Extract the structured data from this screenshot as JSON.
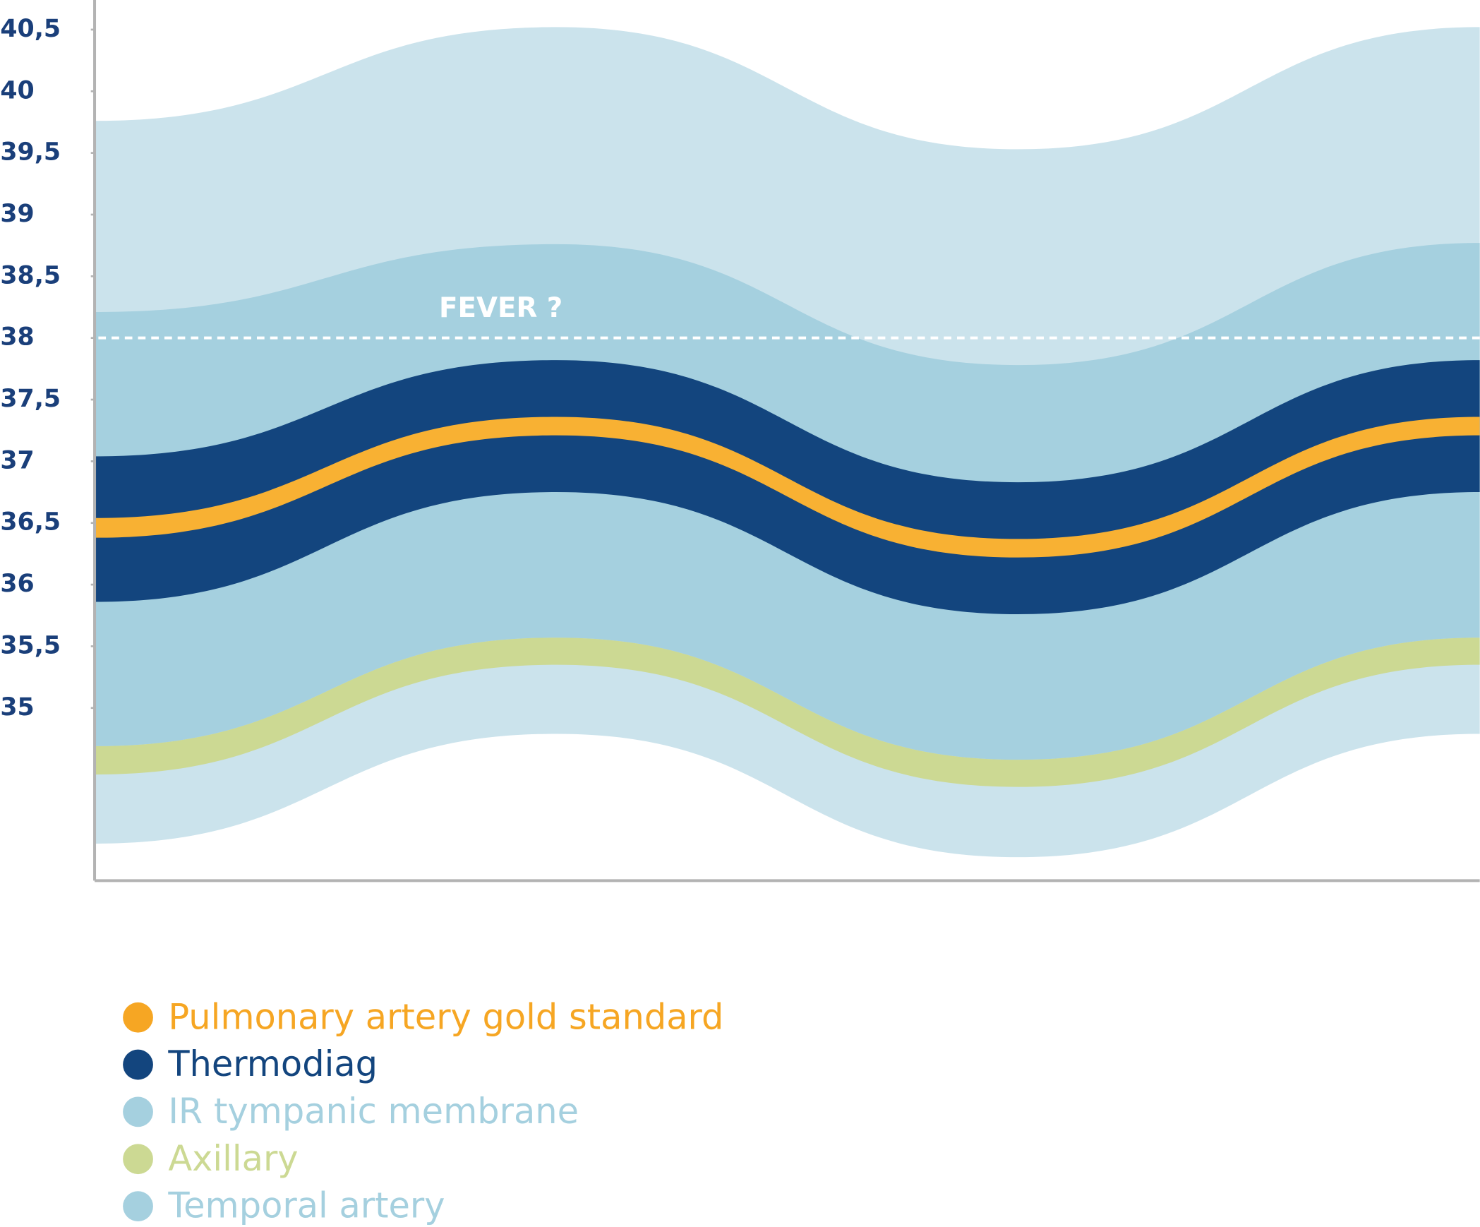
{
  "chart_data": {
    "type": "band",
    "categories": [
      null,
      null,
      null,
      null
    ],
    "ylim": [
      33.6,
      40.74
    ],
    "yticks": [
      35,
      {
        "value": 35.5,
        "label": "35,5"
      },
      36,
      {
        "value": 36.5,
        "label": "36,5"
      },
      37,
      {
        "value": 37.5,
        "label": "37,5"
      },
      38,
      {
        "value": 38.5,
        "label": "38,5"
      },
      39,
      {
        "value": 39.5,
        "label": "39,5"
      },
      40,
      {
        "value": 40.5,
        "label": "40,5"
      }
    ],
    "threshold": {
      "value": 38,
      "label": "FEVER ?"
    },
    "series": [
      {
        "name": "Temporal artery",
        "color": "#a5d0df",
        "fill": "#cbe3ec",
        "upper": [
          39.76,
          40.52,
          39.53,
          40.52
        ],
        "lower": [
          33.9,
          34.79,
          33.79,
          34.79
        ]
      },
      {
        "name": "IR tympanic membrane",
        "color": "#a5d0df",
        "fill": "#a5d0df",
        "upper": [
          38.21,
          38.76,
          37.78,
          38.77
        ],
        "lower": [
          34.69,
          35.57,
          34.58,
          35.57
        ]
      },
      {
        "name": "Axillary",
        "color": "#ccd993",
        "fill": "#ccd993",
        "upper": [
          34.69,
          35.57,
          34.58,
          35.57
        ],
        "lower": [
          34.46,
          35.35,
          34.36,
          35.35
        ]
      },
      {
        "name": "Thermodiag",
        "color": "#13457e",
        "fill": "#13457e",
        "upper": [
          37.04,
          37.82,
          36.83,
          37.82
        ],
        "lower": [
          35.86,
          36.75,
          35.76,
          36.75
        ]
      },
      {
        "name": "Pulmonary artery gold standard",
        "color": "#f6a623",
        "fill": "#f8b133",
        "upper": [
          36.54,
          37.36,
          36.37,
          37.36
        ],
        "lower": [
          36.38,
          37.21,
          36.22,
          37.21
        ]
      }
    ],
    "legend_order": [
      4,
      3,
      1,
      2,
      0
    ]
  }
}
